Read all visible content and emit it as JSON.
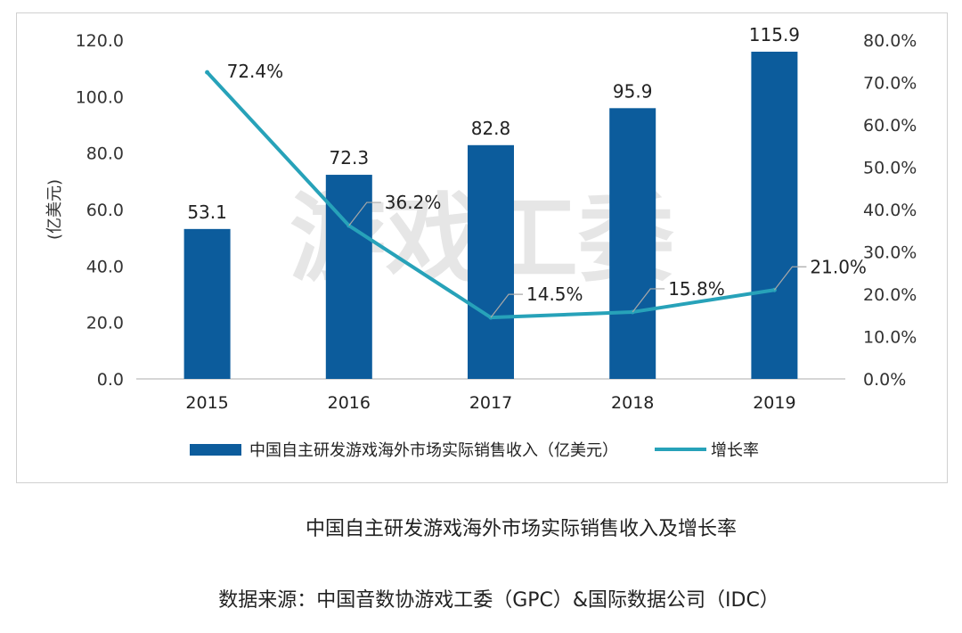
{
  "chart_data": {
    "type": "bar",
    "categories": [
      "2015",
      "2016",
      "2017",
      "2018",
      "2019"
    ],
    "series": [
      {
        "name": "中国自主研发游戏海外市场实际销售收入（亿美元）",
        "type": "bar",
        "axis": "left",
        "values": [
          53.1,
          72.3,
          82.8,
          95.9,
          115.9
        ],
        "labels": [
          "53.1",
          "72.3",
          "82.8",
          "95.9",
          "115.9"
        ],
        "color": "#0c5c9c"
      },
      {
        "name": "增长率",
        "type": "line",
        "axis": "right",
        "values": [
          72.4,
          36.2,
          14.5,
          15.8,
          21.0
        ],
        "labels": [
          "72.4%",
          "36.2%",
          "14.5%",
          "15.8%",
          "21.0%"
        ],
        "color": "#27a2b9"
      }
    ],
    "ylabel": "(亿美元)",
    "ylim": [
      0,
      120
    ],
    "y_ticks": [
      "0.0",
      "20.0",
      "40.0",
      "60.0",
      "80.0",
      "100.0",
      "120.0"
    ],
    "y2lim": [
      0,
      80
    ],
    "y2_ticks": [
      "0.0%",
      "10.0%",
      "20.0%",
      "30.0%",
      "40.0%",
      "50.0%",
      "60.0%",
      "70.0%",
      "80.0%"
    ],
    "grid": false,
    "legend_position": "bottom",
    "watermark": "游戏工委"
  },
  "caption": {
    "title": "中国自主研发游戏海外市场实际销售收入及增长率",
    "source": "数据来源：中国音数协游戏工委（GPC）&国际数据公司（IDC）"
  }
}
